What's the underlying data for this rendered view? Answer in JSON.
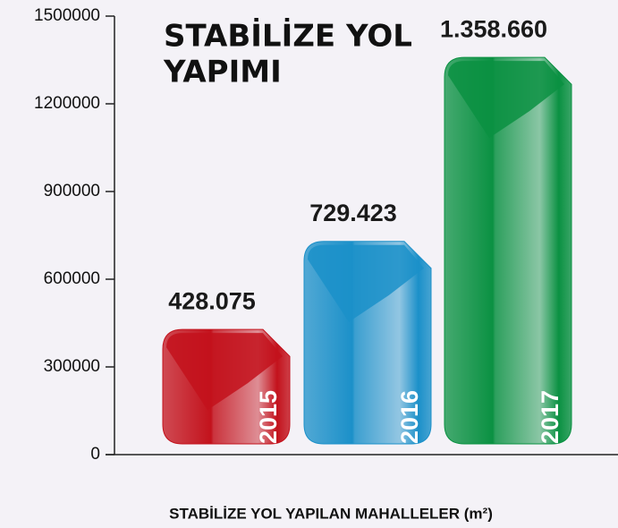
{
  "chart_data": {
    "type": "bar",
    "title": [
      "STABİLİZE YOL",
      "YAPIMI"
    ],
    "x_label": "STABİLİZE YOL YAPILAN MAHALLELER (m²)",
    "categories": [
      "2015",
      "2016",
      "2017"
    ],
    "values": [
      428075,
      729423,
      1358660
    ],
    "value_labels": [
      "428.075",
      "729.423",
      "1.358.660"
    ],
    "colors": [
      "#c3121c",
      "#1b90c9",
      "#0a9142"
    ],
    "ylim": [
      0,
      1500000
    ],
    "yticks": [
      0,
      300000,
      600000,
      900000,
      1200000,
      1500000
    ],
    "grid": false
  }
}
